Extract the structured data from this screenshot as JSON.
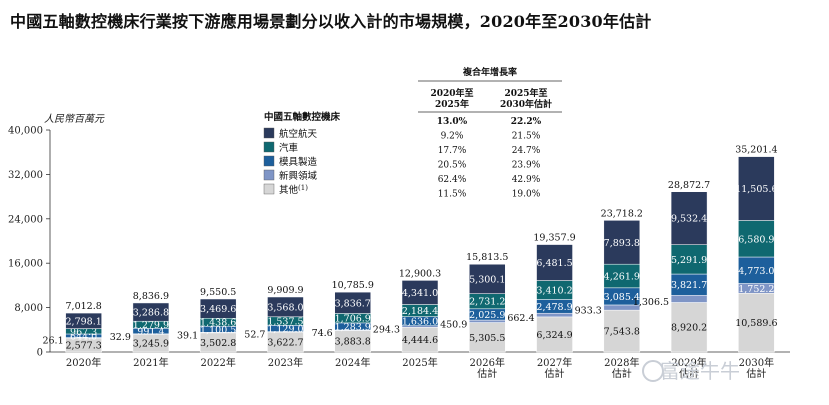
{
  "title": "中國五軸數控機床行業按下游應用場景劃分以收入計的市場規模，2020年至2030年估計",
  "unit": "人民幣百萬元",
  "colors": {
    "aerospace": "#2b3a5c",
    "auto": "#0f6870",
    "mold": "#1d5f9c",
    "emerging": "#7f95c6",
    "other": "#d6d6d6"
  },
  "legend": {
    "title": "中國五軸數控機床",
    "items": [
      "航空航天",
      "汽車",
      "模具製造",
      "新興領域",
      "其他"
    ],
    "other_sup": "(1)"
  },
  "cagr_table": {
    "title": "複合年增長率",
    "head1": [
      "2020年至",
      "2025年"
    ],
    "head2": [
      "2025年至",
      "2030年估計"
    ],
    "rows": [
      [
        "13.0%",
        "22.2%"
      ],
      [
        "9.2%",
        "21.5%"
      ],
      [
        "17.7%",
        "24.7%"
      ],
      [
        "20.5%",
        "23.9%"
      ],
      [
        "62.4%",
        "42.9%"
      ],
      [
        "11.5%",
        "19.0%"
      ]
    ]
  },
  "watermark": "富途牛牛",
  "chart_data": {
    "type": "bar",
    "stacked": true,
    "categories": [
      [
        "2020年"
      ],
      [
        "2021年"
      ],
      [
        "2022年"
      ],
      [
        "2023年"
      ],
      [
        "2024年"
      ],
      [
        "2025年"
      ],
      [
        "2026年",
        "估計"
      ],
      [
        "2027年",
        "估計"
      ],
      [
        "2028年",
        "估計"
      ],
      [
        "2029年",
        "估計"
      ],
      [
        "2030年",
        "估計"
      ]
    ],
    "ylim": [
      0,
      40000
    ],
    "yticks": [
      0,
      8000,
      16000,
      24000,
      32000,
      40000
    ],
    "ytick_labels": [
      "0",
      "8,000",
      "16,000",
      "24,000",
      "32,000",
      "40,000"
    ],
    "series": [
      {
        "name": "其他",
        "key": "other",
        "values": [
          2577.3,
          3245.9,
          3502.8,
          3622.7,
          3883.8,
          4444.6,
          5305.5,
          6324.9,
          7543.8,
          8920.2,
          10589.6
        ],
        "labels": [
          "2,577.3",
          "3,245.9",
          "3,502.8",
          "3,622.7",
          "3,883.8",
          "4,444.6",
          "5,305.5",
          "6,324.9",
          "7,543.8",
          "8,920.2",
          "10,589.6"
        ]
      },
      {
        "name": "新興領域",
        "key": "emerging",
        "values": [
          26.1,
          32.9,
          39.1,
          52.7,
          74.6,
          294.3,
          450.9,
          662.4,
          933.3,
          1306.5,
          1752.2
        ],
        "labels": [
          "26.1",
          "32.9",
          "39.1",
          "52.7",
          "74.6",
          "294.3",
          "450.9",
          "662.4",
          "933.3",
          "1,306.5",
          "1,752.2"
        ]
      },
      {
        "name": "模具製造",
        "key": "mold",
        "values": [
          644.0,
          991.4,
          1100.5,
          1129.0,
          1283.9,
          1636.0,
          2025.9,
          2478.9,
          3085.4,
          3821.7,
          4773.0
        ],
        "labels": [
          "644.0",
          "991.4",
          "1,100.5",
          "1,129.0",
          "1,283.9",
          "1,636.0",
          "2,025.9",
          "2,478.9",
          "3,085.4",
          "3,821.7",
          "4,773.0"
        ]
      },
      {
        "name": "汽車",
        "key": "auto",
        "values": [
          967.3,
          1279.9,
          1438.6,
          1537.5,
          1706.9,
          2184.4,
          2731.2,
          3410.2,
          4261.9,
          5291.9,
          6580.9
        ],
        "labels": [
          "967.3",
          "1,279.9",
          "1,438.6",
          "1,537.5",
          "1,706.9",
          "2,184.4",
          "2,731.2",
          "3,410.2",
          "4,261.9",
          "5,291.9",
          "6,580.9"
        ]
      },
      {
        "name": "航空航天",
        "key": "aerospace",
        "values": [
          2798.1,
          3286.8,
          3469.6,
          3568.0,
          3836.7,
          4341.0,
          5300.1,
          6481.5,
          7893.8,
          9532.4,
          11505.6
        ],
        "labels": [
          "2,798.1",
          "3,286.8",
          "3,469.6",
          "3,568.0",
          "3,836.7",
          "4,341.0",
          "5,300.1",
          "6,481.5",
          "7,893.8",
          "9,532.4",
          "11,505.6"
        ]
      }
    ],
    "totals": [
      7012.8,
      8836.9,
      9550.5,
      9909.9,
      10785.9,
      12900.3,
      15813.5,
      19357.9,
      23718.2,
      28872.7,
      35201.4
    ],
    "total_labels": [
      "7,012.8",
      "8,836.9",
      "9,550.5",
      "9,909.9",
      "10,785.9",
      "12,900.3",
      "15,813.5",
      "19,357.9",
      "23,718.2",
      "28,872.7",
      "35,201.4"
    ]
  }
}
